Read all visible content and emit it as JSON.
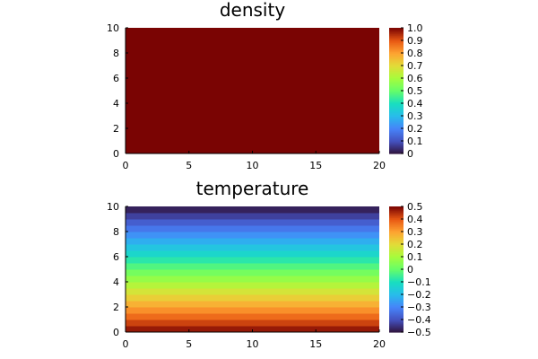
{
  "chart_data": [
    {
      "type": "heatmap",
      "title": "density",
      "xlim": [
        0,
        20
      ],
      "ylim": [
        0,
        10
      ],
      "x_ticks": [
        "0",
        "5",
        "10",
        "15",
        "20"
      ],
      "y_ticks": [
        "0",
        "2",
        "4",
        "6",
        "8",
        "10"
      ],
      "field": "constant",
      "value": 1.0,
      "colorbar": {
        "min": 0,
        "max": 1,
        "ticks": [
          "0",
          "0.1",
          "0.2",
          "0.3",
          "0.4",
          "0.5",
          "0.6",
          "0.7",
          "0.8",
          "0.9",
          "1.0"
        ]
      },
      "colormap": "turbo",
      "grid": false
    },
    {
      "type": "heatmap",
      "title": "temperature",
      "xlim": [
        0,
        20
      ],
      "ylim": [
        0,
        10
      ],
      "x_ticks": [
        "0",
        "5",
        "10",
        "15",
        "20"
      ],
      "y_ticks": [
        "0",
        "2",
        "4",
        "6",
        "8",
        "10"
      ],
      "field": "linear in y, constant in x",
      "value_at_y_min": 0.5,
      "value_at_y_max": -0.5,
      "bands": 20,
      "colorbar": {
        "min": -0.5,
        "max": 0.5,
        "ticks": [
          "−0.5",
          "−0.4",
          "−0.3",
          "−0.2",
          "−0.1",
          "0",
          "0.1",
          "0.2",
          "0.3",
          "0.4",
          "0.5"
        ]
      },
      "colormap": "turbo",
      "grid": false
    }
  ]
}
